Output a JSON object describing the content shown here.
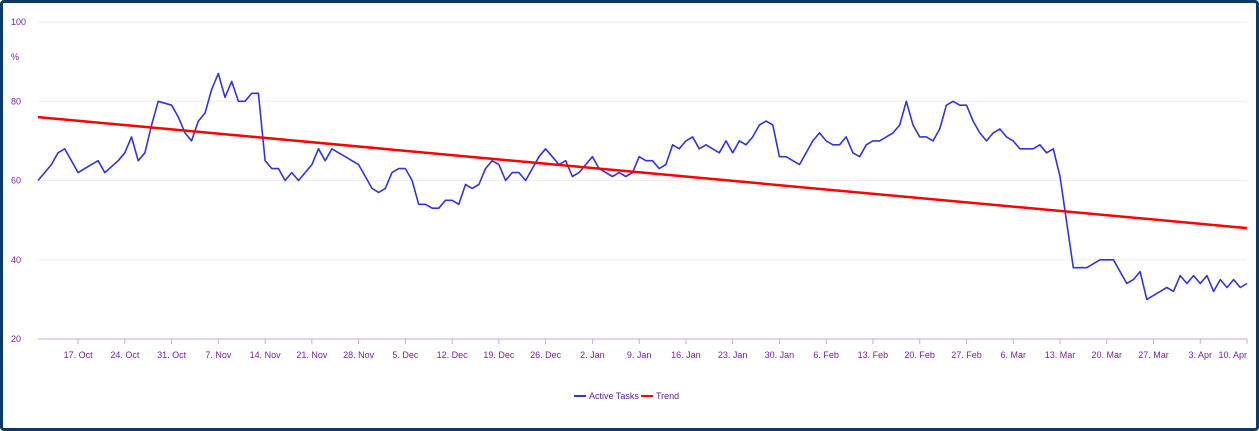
{
  "chart_data": {
    "type": "line",
    "ylabel": "%",
    "ylim": [
      20,
      100
    ],
    "yticks": [
      "20",
      "40",
      "60",
      "80",
      "100"
    ],
    "x_tick_labels": [
      "17. Oct",
      "24. Oct",
      "31. Oct",
      "7. Nov",
      "14. Nov",
      "21. Nov",
      "28. Nov",
      "5. Dec",
      "12. Dec",
      "19. Dec",
      "26. Dec",
      "2. Jan",
      "9. Jan",
      "16. Jan",
      "23. Jan",
      "30. Jan",
      "6. Feb",
      "13. Feb",
      "20. Feb",
      "27. Feb",
      "6. Mar",
      "13. Mar",
      "20. Mar",
      "27. Mar",
      "3. Apr",
      "10. Apr"
    ],
    "x_start": "Oct 11",
    "x_end": "Apr 10",
    "grid": "horizontal",
    "legend_position": "bottom-center",
    "series": [
      {
        "name": "Active Tasks",
        "color": "#3333dd",
        "points": [
          [
            "Oct 11",
            60
          ],
          [
            "Oct 13",
            64
          ],
          [
            "Oct 14",
            67
          ],
          [
            "Oct 15",
            68
          ],
          [
            "Oct 17",
            62
          ],
          [
            "Oct 19",
            64
          ],
          [
            "Oct 20",
            65
          ],
          [
            "Oct 21",
            62
          ],
          [
            "Oct 23",
            65
          ],
          [
            "Oct 24",
            67
          ],
          [
            "Oct 25",
            71
          ],
          [
            "Oct 26",
            65
          ],
          [
            "Oct 27",
            67
          ],
          [
            "Oct 28",
            74
          ],
          [
            "Oct 29",
            80
          ],
          [
            "Oct 31",
            79
          ],
          [
            "Nov 1",
            76
          ],
          [
            "Nov 2",
            72
          ],
          [
            "Nov 3",
            70
          ],
          [
            "Nov 4",
            75
          ],
          [
            "Nov 5",
            77
          ],
          [
            "Nov 6",
            83
          ],
          [
            "Nov 7",
            87
          ],
          [
            "Nov 8",
            81
          ],
          [
            "Nov 9",
            85
          ],
          [
            "Nov 10",
            80
          ],
          [
            "Nov 11",
            80
          ],
          [
            "Nov 12",
            82
          ],
          [
            "Nov 13",
            82
          ],
          [
            "Nov 14",
            65
          ],
          [
            "Nov 15",
            63
          ],
          [
            "Nov 16",
            63
          ],
          [
            "Nov 17",
            60
          ],
          [
            "Nov 18",
            62
          ],
          [
            "Nov 19",
            60
          ],
          [
            "Nov 21",
            64
          ],
          [
            "Nov 22",
            68
          ],
          [
            "Nov 23",
            65
          ],
          [
            "Nov 24",
            68
          ],
          [
            "Nov 25",
            67
          ],
          [
            "Nov 26",
            66
          ],
          [
            "Nov 27",
            65
          ],
          [
            "Nov 28",
            64
          ],
          [
            "Nov 29",
            61
          ],
          [
            "Nov 30",
            58
          ],
          [
            "Dec 1",
            57
          ],
          [
            "Dec 2",
            58
          ],
          [
            "Dec 3",
            62
          ],
          [
            "Dec 4",
            63
          ],
          [
            "Dec 5",
            63
          ],
          [
            "Dec 6",
            60
          ],
          [
            "Dec 7",
            54
          ],
          [
            "Dec 8",
            54
          ],
          [
            "Dec 9",
            53
          ],
          [
            "Dec 10",
            53
          ],
          [
            "Dec 11",
            55
          ],
          [
            "Dec 12",
            55
          ],
          [
            "Dec 13",
            54
          ],
          [
            "Dec 14",
            59
          ],
          [
            "Dec 15",
            58
          ],
          [
            "Dec 16",
            59
          ],
          [
            "Dec 17",
            63
          ],
          [
            "Dec 18",
            65
          ],
          [
            "Dec 19",
            64
          ],
          [
            "Dec 20",
            60
          ],
          [
            "Dec 21",
            62
          ],
          [
            "Dec 22",
            62
          ],
          [
            "Dec 23",
            60
          ],
          [
            "Dec 24",
            63
          ],
          [
            "Dec 25",
            66
          ],
          [
            "Dec 26",
            68
          ],
          [
            "Dec 27",
            66
          ],
          [
            "Dec 28",
            64
          ],
          [
            "Dec 29",
            65
          ],
          [
            "Dec 30",
            61
          ],
          [
            "Dec 31",
            62
          ],
          [
            "Jan 1",
            64
          ],
          [
            "Jan 2",
            66
          ],
          [
            "Jan 3",
            63
          ],
          [
            "Jan 4",
            62
          ],
          [
            "Jan 5",
            61
          ],
          [
            "Jan 6",
            62
          ],
          [
            "Jan 7",
            61
          ],
          [
            "Jan 8",
            62
          ],
          [
            "Jan 9",
            66
          ],
          [
            "Jan 10",
            65
          ],
          [
            "Jan 11",
            65
          ],
          [
            "Jan 12",
            63
          ],
          [
            "Jan 13",
            64
          ],
          [
            "Jan 14",
            69
          ],
          [
            "Jan 15",
            68
          ],
          [
            "Jan 16",
            70
          ],
          [
            "Jan 17",
            71
          ],
          [
            "Jan 18",
            68
          ],
          [
            "Jan 19",
            69
          ],
          [
            "Jan 20",
            68
          ],
          [
            "Jan 21",
            67
          ],
          [
            "Jan 22",
            70
          ],
          [
            "Jan 23",
            67
          ],
          [
            "Jan 24",
            70
          ],
          [
            "Jan 25",
            69
          ],
          [
            "Jan 26",
            71
          ],
          [
            "Jan 27",
            74
          ],
          [
            "Jan 28",
            75
          ],
          [
            "Jan 29",
            74
          ],
          [
            "Jan 30",
            66
          ],
          [
            "Jan 31",
            66
          ],
          [
            "Feb 1",
            65
          ],
          [
            "Feb 2",
            64
          ],
          [
            "Feb 3",
            67
          ],
          [
            "Feb 4",
            70
          ],
          [
            "Feb 5",
            72
          ],
          [
            "Feb 6",
            70
          ],
          [
            "Feb 7",
            69
          ],
          [
            "Feb 8",
            69
          ],
          [
            "Feb 9",
            71
          ],
          [
            "Feb 10",
            67
          ],
          [
            "Feb 11",
            66
          ],
          [
            "Feb 12",
            69
          ],
          [
            "Feb 13",
            70
          ],
          [
            "Feb 14",
            70
          ],
          [
            "Feb 15",
            71
          ],
          [
            "Feb 16",
            72
          ],
          [
            "Feb 17",
            74
          ],
          [
            "Feb 18",
            80
          ],
          [
            "Feb 19",
            74
          ],
          [
            "Feb 20",
            71
          ],
          [
            "Feb 21",
            71
          ],
          [
            "Feb 22",
            70
          ],
          [
            "Feb 23",
            73
          ],
          [
            "Feb 24",
            79
          ],
          [
            "Feb 25",
            80
          ],
          [
            "Feb 26",
            79
          ],
          [
            "Feb 27",
            79
          ],
          [
            "Feb 28",
            75
          ],
          [
            "Mar 1",
            72
          ],
          [
            "Mar 2",
            70
          ],
          [
            "Mar 3",
            72
          ],
          [
            "Mar 4",
            73
          ],
          [
            "Mar 5",
            71
          ],
          [
            "Mar 6",
            70
          ],
          [
            "Mar 7",
            68
          ],
          [
            "Mar 8",
            68
          ],
          [
            "Mar 9",
            68
          ],
          [
            "Mar 10",
            69
          ],
          [
            "Mar 11",
            67
          ],
          [
            "Mar 12",
            68
          ],
          [
            "Mar 13",
            61
          ],
          [
            "Mar 15",
            38
          ],
          [
            "Mar 17",
            38
          ],
          [
            "Mar 19",
            40
          ],
          [
            "Mar 21",
            40
          ],
          [
            "Mar 23",
            34
          ],
          [
            "Mar 24",
            35
          ],
          [
            "Mar 25",
            37
          ],
          [
            "Mar 26",
            30
          ],
          [
            "Mar 27",
            31
          ],
          [
            "Mar 28",
            32
          ],
          [
            "Mar 29",
            33
          ],
          [
            "Mar 30",
            32
          ],
          [
            "Mar 31",
            36
          ],
          [
            "Apr 1",
            34
          ],
          [
            "Apr 2",
            36
          ],
          [
            "Apr 3",
            34
          ],
          [
            "Apr 4",
            36
          ],
          [
            "Apr 5",
            32
          ],
          [
            "Apr 6",
            35
          ],
          [
            "Apr 7",
            33
          ],
          [
            "Apr 8",
            35
          ],
          [
            "Apr 9",
            33
          ],
          [
            "Apr 10",
            34
          ]
        ]
      },
      {
        "name": "Trend",
        "color": "#ff0000",
        "points": [
          [
            "Oct 11",
            76
          ],
          [
            "Apr 10",
            48
          ]
        ]
      }
    ]
  }
}
